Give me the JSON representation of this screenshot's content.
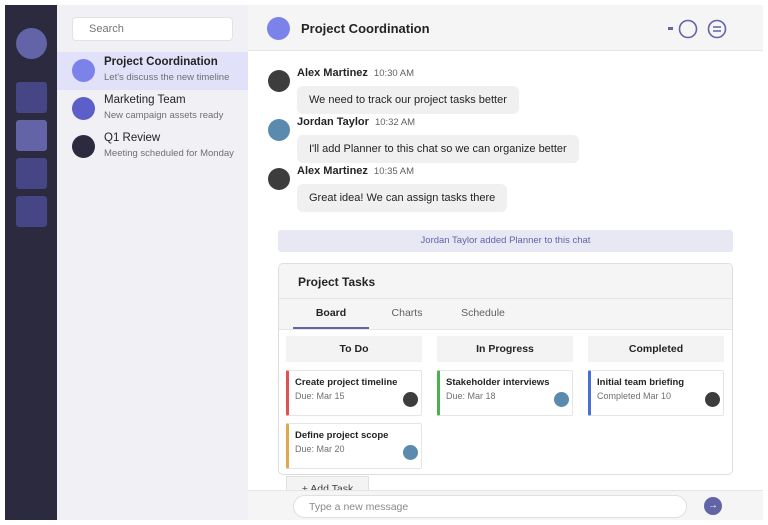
{
  "rail": {
    "apps": [
      "app-1",
      "app-2",
      "app-3",
      "app-4"
    ]
  },
  "chat_list": {
    "search_placeholder": "Search",
    "items": [
      {
        "title": "Project Coordination",
        "subtitle": "Let's discuss the new timeline",
        "color": "#7b83eb",
        "selected": true
      },
      {
        "title": "Marketing Team",
        "subtitle": "New campaign assets ready",
        "color": "#5b5fc7"
      },
      {
        "title": "Q1 Review",
        "subtitle": "Meeting scheduled for Monday",
        "color": "#2b2a3e"
      }
    ]
  },
  "header": {
    "title": "Project Coordination",
    "icons": [
      "call-icon",
      "more-options-icon"
    ]
  },
  "messages": [
    {
      "author": "Alex Martinez",
      "time": "10:30 AM",
      "text": "We need to track our project tasks better",
      "color": "#3d3d3d"
    },
    {
      "author": "Jordan Taylor",
      "time": "10:32 AM",
      "text": "I'll add Planner to this chat so we can organize better",
      "color": "#5a8aad"
    },
    {
      "author": "Alex Martinez",
      "time": "10:35 AM",
      "text": "Great idea! We can assign tasks there",
      "color": "#3d3d3d"
    }
  ],
  "system_message": "Jordan Taylor added Planner to this chat",
  "planner": {
    "title": "Project Tasks",
    "tabs": [
      "Board",
      "Charts",
      "Schedule"
    ],
    "active_tab": "Board",
    "columns": [
      {
        "name": "To Do",
        "tasks": [
          {
            "title": "Create project timeline",
            "due": "Due: Mar 15",
            "color": "#e05252",
            "assignee_color": "#3d3d3d"
          },
          {
            "title": "Define project scope",
            "due": "Due: Mar 20",
            "color": "#e0a84a",
            "assignee_color": "#5a8aad"
          }
        ]
      },
      {
        "name": "In Progress",
        "tasks": [
          {
            "title": "Stakeholder interviews",
            "due": "Due: Mar 18",
            "color": "#4caf50",
            "assignee_color": "#5a8aad"
          }
        ]
      },
      {
        "name": "Completed",
        "tasks": [
          {
            "title": "Initial team briefing",
            "due": "Completed Mar 10",
            "color": "#4a6fd6",
            "assignee_color": "#3d3d3d"
          }
        ]
      }
    ],
    "add_task": "+ Add Task"
  },
  "composer": {
    "placeholder": "Type a new message",
    "send_icon": "→"
  }
}
